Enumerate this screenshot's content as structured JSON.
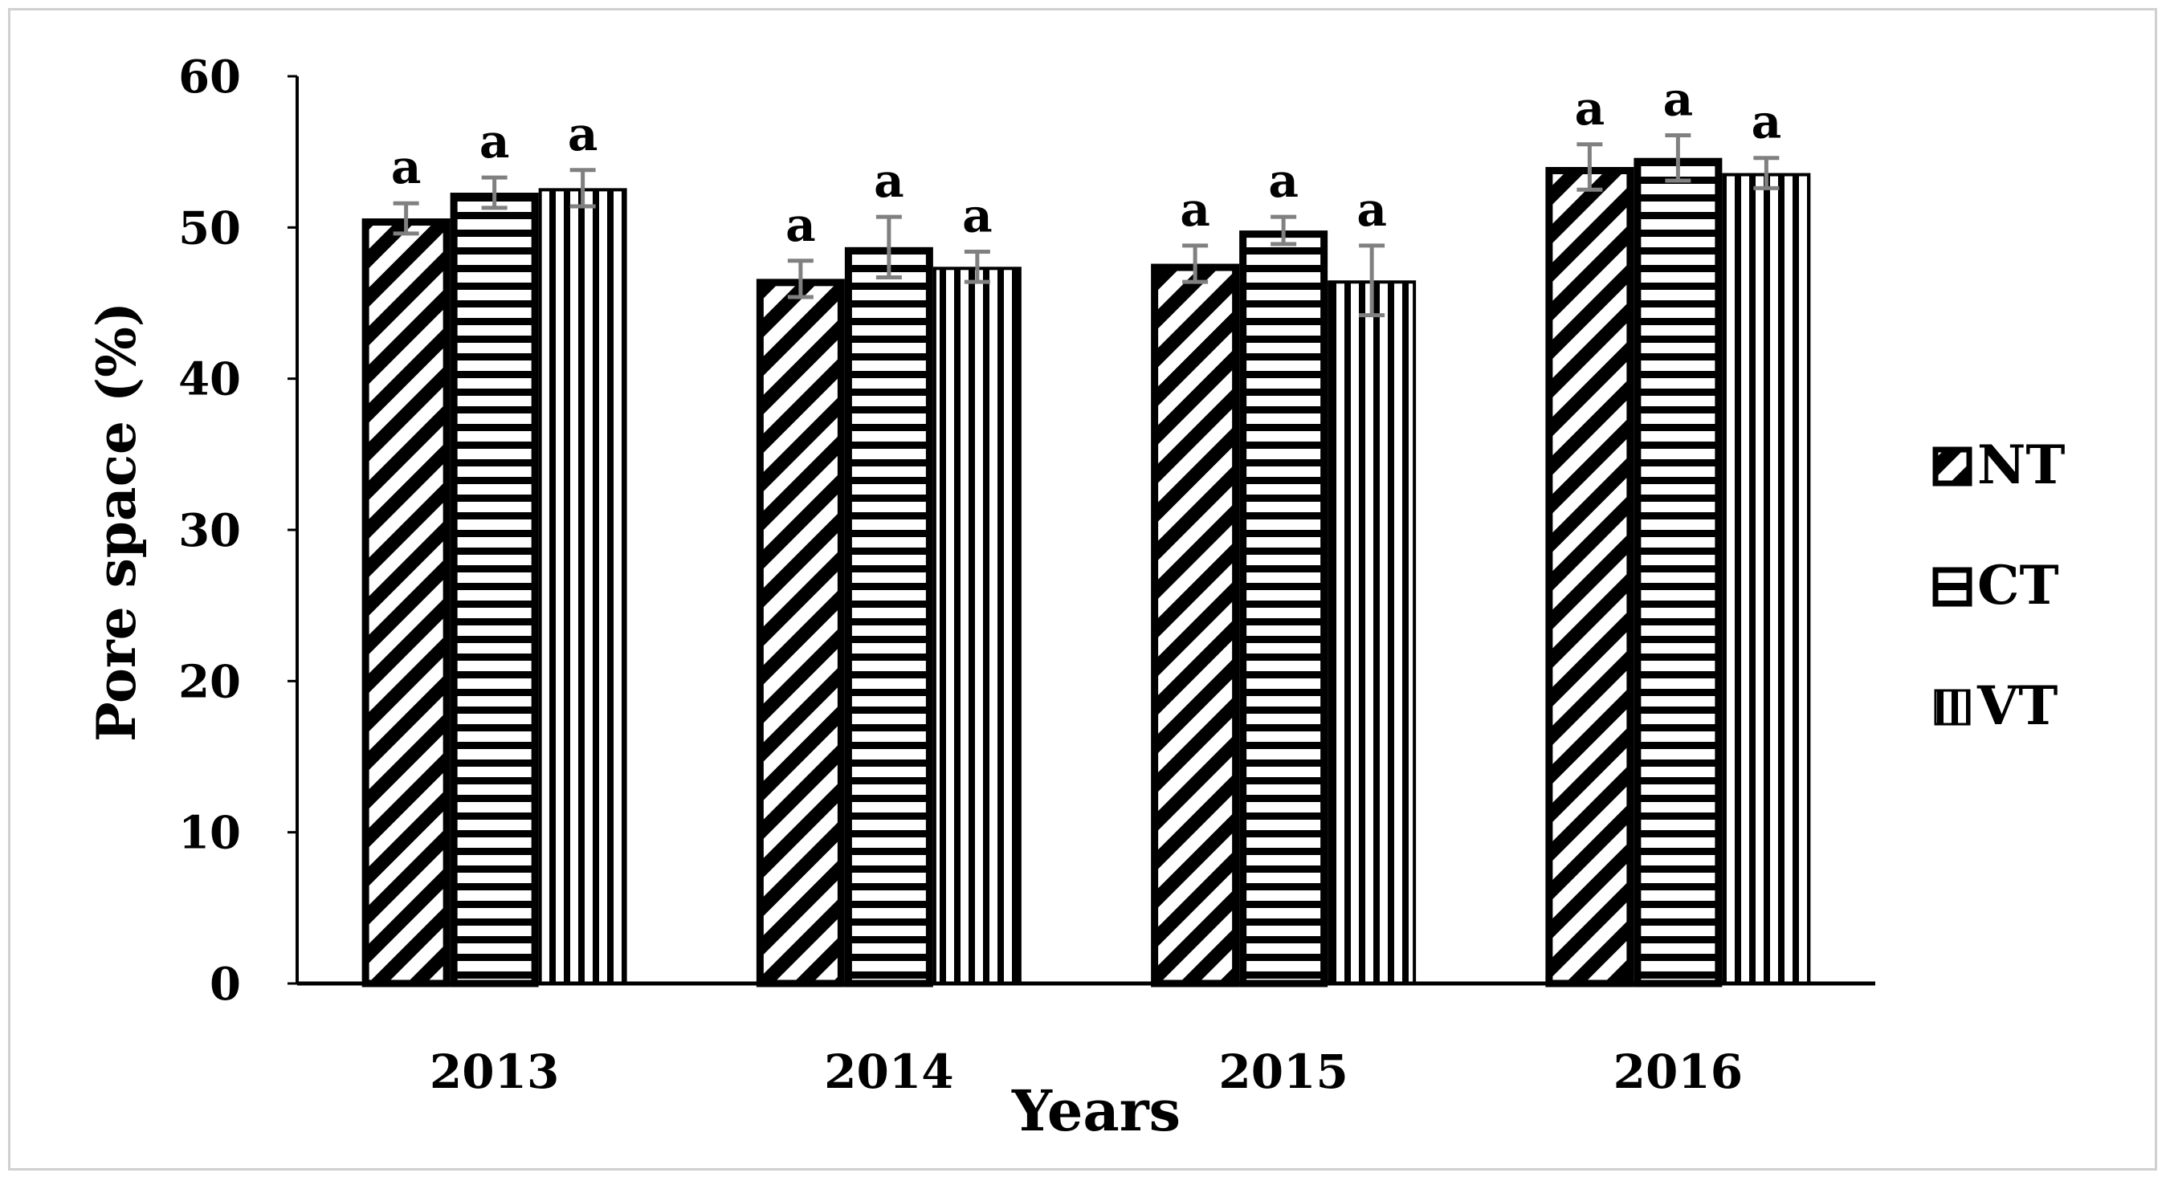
{
  "chart_data": {
    "type": "bar",
    "title": "",
    "xlabel": "Years",
    "ylabel": "Pore space (%)",
    "ylim": [
      0,
      60
    ],
    "yticks": [
      0,
      10,
      20,
      30,
      40,
      50,
      60
    ],
    "categories": [
      "2013",
      "2014",
      "2015",
      "2016"
    ],
    "series": [
      {
        "name": "NT",
        "pattern": "diagonal",
        "values": [
          50.6,
          46.6,
          47.6,
          54.0
        ],
        "errors": [
          1.0,
          1.2,
          1.2,
          1.5
        ],
        "labels": [
          "a",
          "a",
          "a",
          "a"
        ]
      },
      {
        "name": "CT",
        "pattern": "horizontal",
        "values": [
          52.3,
          48.7,
          49.8,
          54.6
        ],
        "errors": [
          1.0,
          2.0,
          0.9,
          1.5
        ],
        "labels": [
          "a",
          "a",
          "a",
          "a"
        ]
      },
      {
        "name": "VT",
        "pattern": "vertical",
        "values": [
          52.6,
          47.4,
          46.5,
          53.6
        ],
        "errors": [
          1.2,
          1.0,
          2.3,
          1.0
        ],
        "labels": [
          "a",
          "a",
          "a",
          "a"
        ]
      }
    ],
    "grid": false,
    "legend_position": "right",
    "error_bar_color": "#808080"
  }
}
